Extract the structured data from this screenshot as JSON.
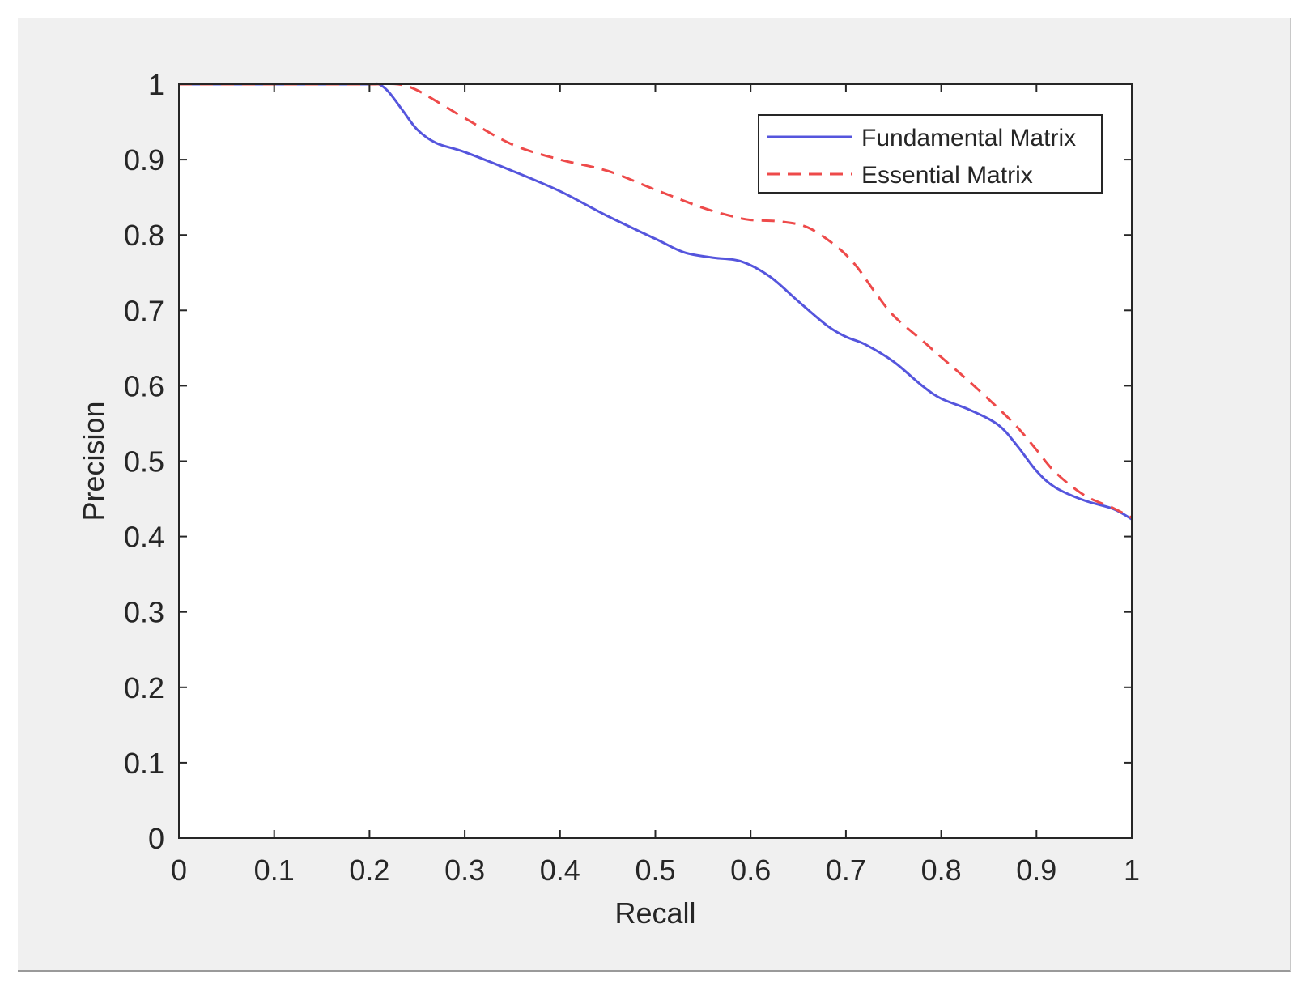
{
  "chart_data": {
    "type": "line",
    "title": "",
    "xlabel": "Recall",
    "ylabel": "Precision",
    "xlim": [
      0,
      1
    ],
    "ylim": [
      0,
      1
    ],
    "xticks": [
      "0",
      "0.1",
      "0.2",
      "0.3",
      "0.4",
      "0.5",
      "0.6",
      "0.7",
      "0.8",
      "0.9",
      "1"
    ],
    "yticks": [
      "0",
      "0.1",
      "0.2",
      "0.3",
      "0.4",
      "0.5",
      "0.6",
      "0.7",
      "0.8",
      "0.9",
      "1"
    ],
    "grid": false,
    "legend_position": "top-right",
    "series": [
      {
        "name": "Fundamental Matrix",
        "color": "#5555dd",
        "style": "solid",
        "x": [
          0,
          0.05,
          0.1,
          0.15,
          0.2,
          0.21,
          0.22,
          0.235,
          0.25,
          0.27,
          0.3,
          0.35,
          0.4,
          0.45,
          0.5,
          0.53,
          0.56,
          0.59,
          0.62,
          0.65,
          0.68,
          0.7,
          0.72,
          0.75,
          0.78,
          0.8,
          0.83,
          0.86,
          0.88,
          0.9,
          0.92,
          0.95,
          0.98,
          1.0
        ],
        "y": [
          1.0,
          1.0,
          1.0,
          1.0,
          1.0,
          1.0,
          0.99,
          0.965,
          0.94,
          0.922,
          0.91,
          0.885,
          0.858,
          0.825,
          0.795,
          0.777,
          0.77,
          0.765,
          0.745,
          0.712,
          0.68,
          0.665,
          0.655,
          0.632,
          0.6,
          0.583,
          0.568,
          0.548,
          0.52,
          0.487,
          0.465,
          0.448,
          0.437,
          0.423
        ]
      },
      {
        "name": "Essential Matrix",
        "color": "#ee4a4a",
        "style": "dashed",
        "x": [
          0,
          0.05,
          0.1,
          0.15,
          0.2,
          0.23,
          0.25,
          0.28,
          0.3,
          0.35,
          0.4,
          0.45,
          0.5,
          0.55,
          0.58,
          0.6,
          0.63,
          0.66,
          0.69,
          0.71,
          0.73,
          0.75,
          0.78,
          0.8,
          0.83,
          0.86,
          0.88,
          0.9,
          0.92,
          0.95,
          0.98,
          1.0
        ],
        "y": [
          1.0,
          1.0,
          1.0,
          1.0,
          1.0,
          1.0,
          0.992,
          0.97,
          0.955,
          0.92,
          0.9,
          0.885,
          0.86,
          0.836,
          0.825,
          0.82,
          0.818,
          0.81,
          0.785,
          0.76,
          0.725,
          0.693,
          0.66,
          0.638,
          0.605,
          0.57,
          0.545,
          0.515,
          0.485,
          0.455,
          0.438,
          0.425
        ]
      }
    ]
  }
}
